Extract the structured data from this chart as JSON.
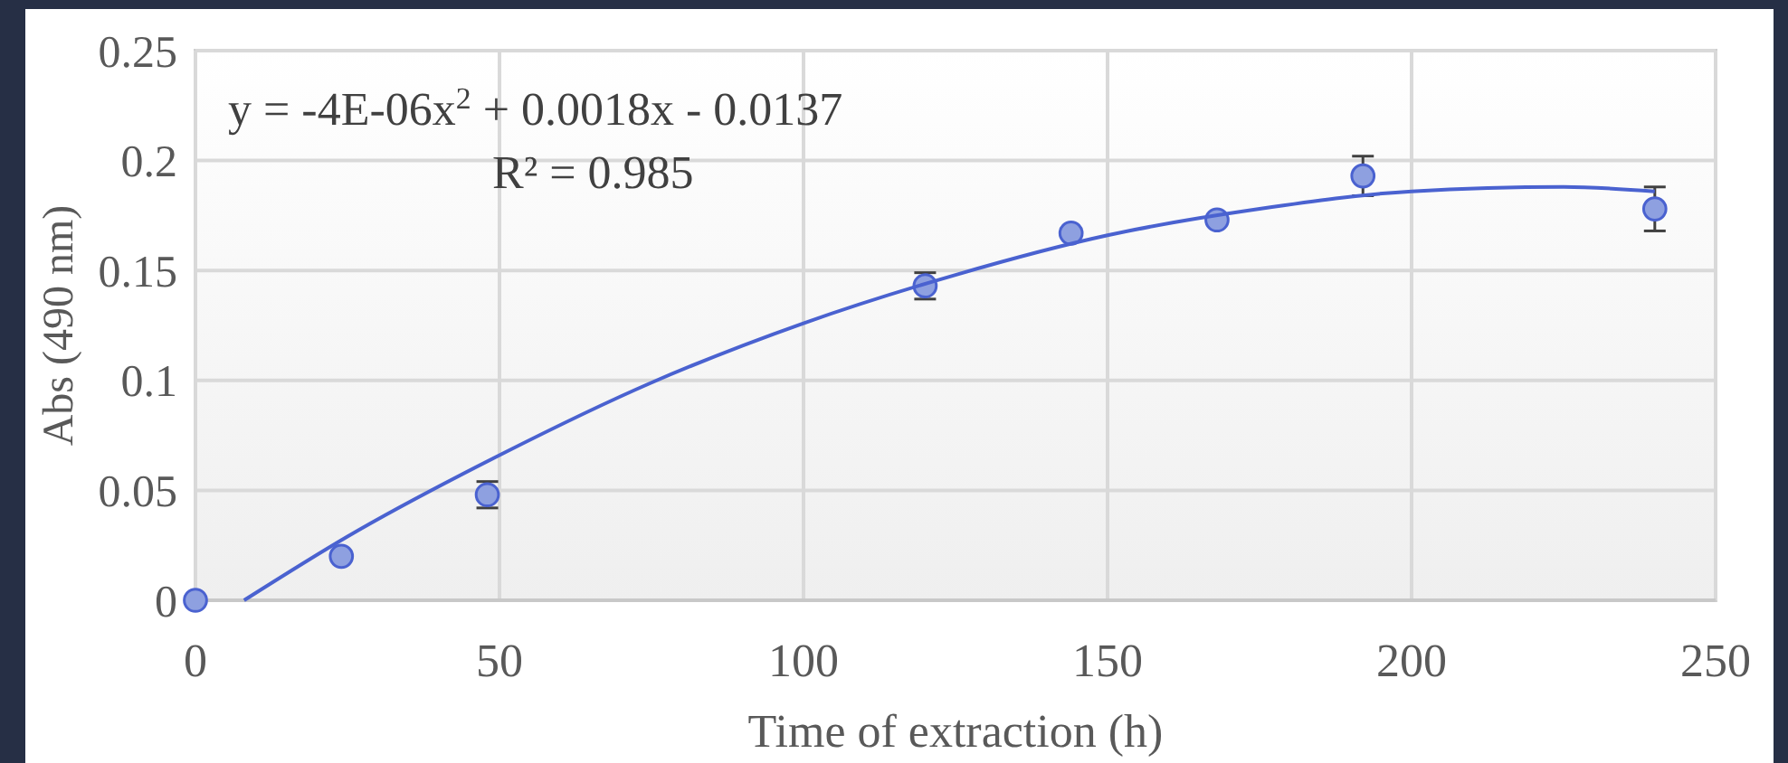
{
  "chart_data": {
    "type": "scatter",
    "xlabel": "Time of extraction (h)",
    "ylabel": "Abs (490 nm)",
    "xlim": [
      0,
      250
    ],
    "xticks": [
      0,
      50,
      100,
      150,
      200,
      250
    ],
    "ylim": [
      0,
      0.25
    ],
    "yticks": [
      0,
      0.05,
      0.1,
      0.15,
      0.2,
      0.25
    ],
    "grid": true,
    "annotations": [
      "y = -4E-06x$^{2}$ + 0.0018x - 0.0137",
      "R² = 0.985"
    ],
    "series": [
      {
        "color": "#8ea0e0",
        "marker": "circle",
        "x": [
          0,
          24,
          48,
          120,
          144,
          168,
          192,
          240
        ],
        "values": [
          0,
          0.02,
          0.048,
          0.143,
          0.167,
          0.173,
          0.193,
          0.178
        ],
        "errors": [
          null,
          null,
          0.006,
          0.006,
          null,
          null,
          0.009,
          0.01
        ]
      },
      {
        "type": "line",
        "marker": "none",
        "color": "#4a62d0",
        "x": [
          8,
          25,
          50,
          75,
          100,
          125,
          150,
          175,
          200,
          225,
          240
        ],
        "values": [
          0,
          0.029,
          0.066,
          0.099,
          0.126,
          0.148,
          0.166,
          0.178,
          0.186,
          0.188,
          0.186
        ]
      }
    ]
  }
}
